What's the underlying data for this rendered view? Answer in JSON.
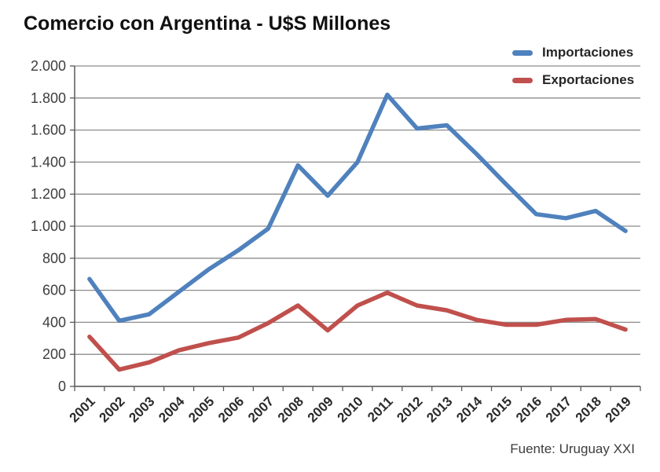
{
  "title": "Comercio con Argentina - U$S Millones",
  "source": "Fuente: Uruguay XXI",
  "colors": {
    "importaciones": "#4f81bd",
    "exportaciones": "#c0504d",
    "gridline": "#8c8c8c",
    "axis": "#595959",
    "tick_label": "#3d3d3d",
    "title_text": "#111111"
  },
  "chart_data": {
    "type": "line",
    "title": "Comercio con Argentina - U$S Millones",
    "xlabel": "",
    "ylabel": "",
    "categories": [
      "2001",
      "2002",
      "2003",
      "2004",
      "2005",
      "2006",
      "2007",
      "2008",
      "2009",
      "2010",
      "2011",
      "2012",
      "2013",
      "2014",
      "2015",
      "2016",
      "2017",
      "2018",
      "2019"
    ],
    "series": [
      {
        "name": "Importaciones",
        "color": "#4f81bd",
        "values": [
          670,
          410,
          450,
          590,
          730,
          850,
          985,
          1380,
          1190,
          1400,
          1820,
          1610,
          1630,
          1450,
          1260,
          1075,
          1050,
          1095,
          970
        ]
      },
      {
        "name": "Exportaciones",
        "color": "#c0504d",
        "values": [
          310,
          105,
          150,
          225,
          270,
          305,
          395,
          505,
          350,
          505,
          585,
          505,
          475,
          415,
          385,
          385,
          415,
          420,
          355
        ]
      }
    ],
    "ylim": [
      0,
      2000
    ],
    "ytick_step": 200,
    "ytick_labels": [
      "0",
      "200",
      "400",
      "600",
      "800",
      "1.000",
      "1.200",
      "1.400",
      "1.600",
      "1.800",
      "2.000"
    ],
    "grid": true,
    "legend_position": "top-right",
    "source_note": "Fuente: Uruguay XXI"
  }
}
